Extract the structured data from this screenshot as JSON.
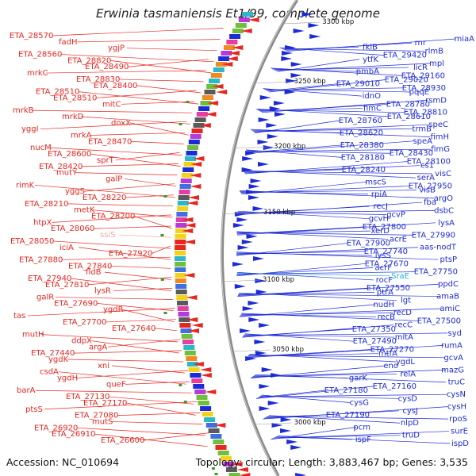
{
  "title": "Erwinia tasmaniensis Et1/99, complete genome",
  "accession": "Accession: NC_010694",
  "summary": "Topology: circular; Length: 3,883,467 bp; Genes: 3,535",
  "colors": {
    "left_labels": "#e8261f",
    "right_labels": "#1d2bd6",
    "highlight": "#22b3d6",
    "dim": "#f0a8a8",
    "backbone": "#8a8a8a"
  },
  "ticks": [
    "3300 kbp",
    "3250 kbp",
    "3200 kbp",
    "3150 kbp",
    "3100 kbp",
    "3050 kbp",
    "3000 kbp"
  ],
  "left_labels": [
    "ETA_28570",
    "fadH",
    "ygjP",
    "ETA_28560",
    "ETA_28820",
    "ETA_28490",
    "mrkC",
    "ETA_28830",
    "ETA_28400",
    "ETA_28510",
    "ETA_28510",
    "mitC",
    "mrkB",
    "mrkD",
    "doxX",
    "yggI",
    "mrkA",
    "ETA_28470",
    "nucM",
    "ETA_28600",
    "sprT",
    "ETA_28420",
    "mutY",
    "galP",
    "rimK",
    "yggS",
    "ETA_28220",
    "ETA_28210",
    "metK",
    "ETA_28200",
    "htpX",
    "ETA_28060",
    "ssiS",
    "ETA_28050",
    "iciA",
    "ETA_27920",
    "ETA_27880",
    "ETA_27840",
    "fldB",
    "ETA_27940",
    "ETA_27810",
    "lysR",
    "galR",
    "ETA_27690",
    "ygdR",
    "tas",
    "ETA_27700",
    "ETA_27640",
    "mutH",
    "ddpX",
    "argA",
    "ETA_27440",
    "ygdK",
    "xni",
    "csdA",
    "ygdH",
    "queF",
    "barA",
    "ETA_27130",
    "ETA_27170",
    "ptsS",
    "ETA_27080",
    "mutS",
    "ETA_26920",
    "ETA_26910",
    "ETA_26600"
  ],
  "right_labels": [
    "miaA",
    "rnr",
    "fklB",
    "rlmB",
    "ETA_29420",
    "ytfK",
    "mpl",
    "licR",
    "pmbA",
    "ETA_29160",
    "ETA_29020",
    "ETA_29010",
    "ETA_28930",
    "pqqE",
    "idnO",
    "rsmD",
    "ETA_28780",
    "fimC",
    "ETA_28810",
    "ETA_28610",
    "ETA_28760",
    "speC",
    "trmB",
    "ETA_28620",
    "fimH",
    "speA",
    "ETA_28380",
    "fimG",
    "ETA_28430",
    "ETA_28180",
    "ETA_28100",
    "cs1",
    "ETA_28240",
    "visC",
    "serA",
    "mscS",
    "ETA_27950",
    "visB",
    "rpiA",
    "argO",
    "fba",
    "recJ",
    "dsbC",
    "gcvP",
    "gcvH",
    "lysA",
    "ETA_27800",
    "xerD",
    "ETA_27990",
    "acrE",
    "ETA_27900",
    "aas-nodT",
    "ETA_27740",
    "lysS",
    "ptsP",
    "ETA_27670",
    "acrF",
    "ETA_27750",
    "SraE",
    "rocF",
    "ppdC",
    "ETA_27550",
    "ptrA",
    "amaB",
    "lgt",
    "nudH",
    "amiC",
    "recD",
    "recB",
    "ETA_27500",
    "recC",
    "ETA_27350",
    "syd",
    "mltA",
    "ETA_27490",
    "rumA",
    "ETA_27270",
    "mtfA",
    "gcvA",
    "ygdL",
    "eno",
    "mazG",
    "relA",
    "garK",
    "truC",
    "ETA_27160",
    "ETA_27180",
    "cysN",
    "cysD",
    "cysG",
    "cysH",
    "cysJ",
    "ETA_27190",
    "rpoS",
    "nlpD",
    "pcm",
    "surE",
    "truD",
    "ispF",
    "ispD"
  ]
}
